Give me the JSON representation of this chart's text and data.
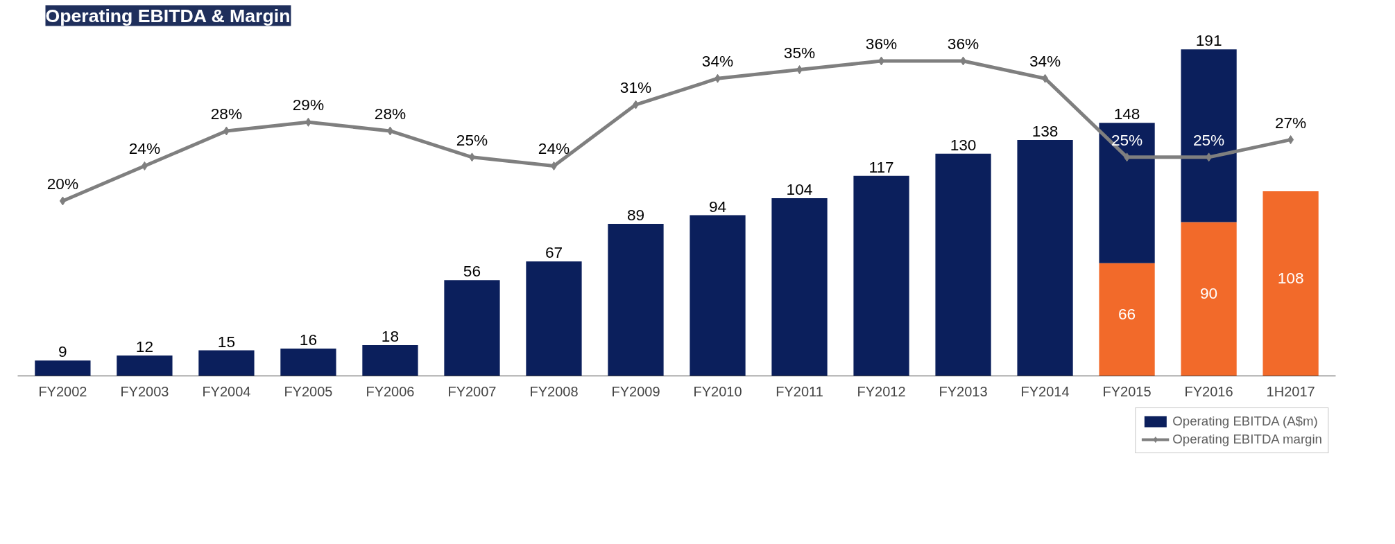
{
  "chart_data": {
    "type": "bar",
    "title": "Operating EBITDA & Margin",
    "stacked": true,
    "categories": [
      "FY2002",
      "FY2003",
      "FY2004",
      "FY2005",
      "FY2006",
      "FY2007",
      "FY2008",
      "FY2009",
      "FY2010",
      "FY2011",
      "FY2012",
      "FY2013",
      "FY2014",
      "FY2015",
      "FY2016",
      "1H2017"
    ],
    "series": [
      {
        "color": "#f26a2a",
        "values": [
          null,
          null,
          null,
          null,
          null,
          null,
          null,
          null,
          null,
          null,
          null,
          null,
          null,
          66,
          90,
          108
        ],
        "value_labels": [
          null,
          null,
          null,
          null,
          null,
          null,
          null,
          null,
          null,
          null,
          null,
          null,
          null,
          "66",
          "90",
          "108"
        ]
      },
      {
        "name": "Operating EBITDA (A$m)",
        "color": "#0b1f5c",
        "values": [
          9,
          12,
          15,
          16,
          18,
          56,
          67,
          89,
          94,
          104,
          117,
          130,
          138,
          82,
          101,
          null
        ],
        "value_labels": [
          "9",
          "12",
          "15",
          "16",
          "18",
          "56",
          "67",
          "89",
          "94",
          "104",
          "117",
          "130",
          "138",
          null,
          null,
          null
        ]
      },
      {
        "name": "Operating EBITDA margin",
        "type": "line",
        "axis": "y2",
        "color": "#7f7f7f",
        "marker": "diamond",
        "values": [
          20,
          24,
          28,
          29,
          28,
          25,
          24,
          31,
          34,
          35,
          36,
          36,
          34,
          25,
          25,
          27
        ],
        "value_labels": [
          "20%",
          "24%",
          "28%",
          "29%",
          "28%",
          "25%",
          "24%",
          "31%",
          "34%",
          "35%",
          "36%",
          "36%",
          "34%",
          "25%",
          "25%",
          "27%"
        ]
      }
    ],
    "totals": [
      null,
      null,
      null,
      null,
      null,
      null,
      null,
      null,
      null,
      null,
      null,
      null,
      null,
      "148",
      "191",
      null
    ],
    "tick_labels": "x",
    "grid": false,
    "legend": "bottom right"
  }
}
